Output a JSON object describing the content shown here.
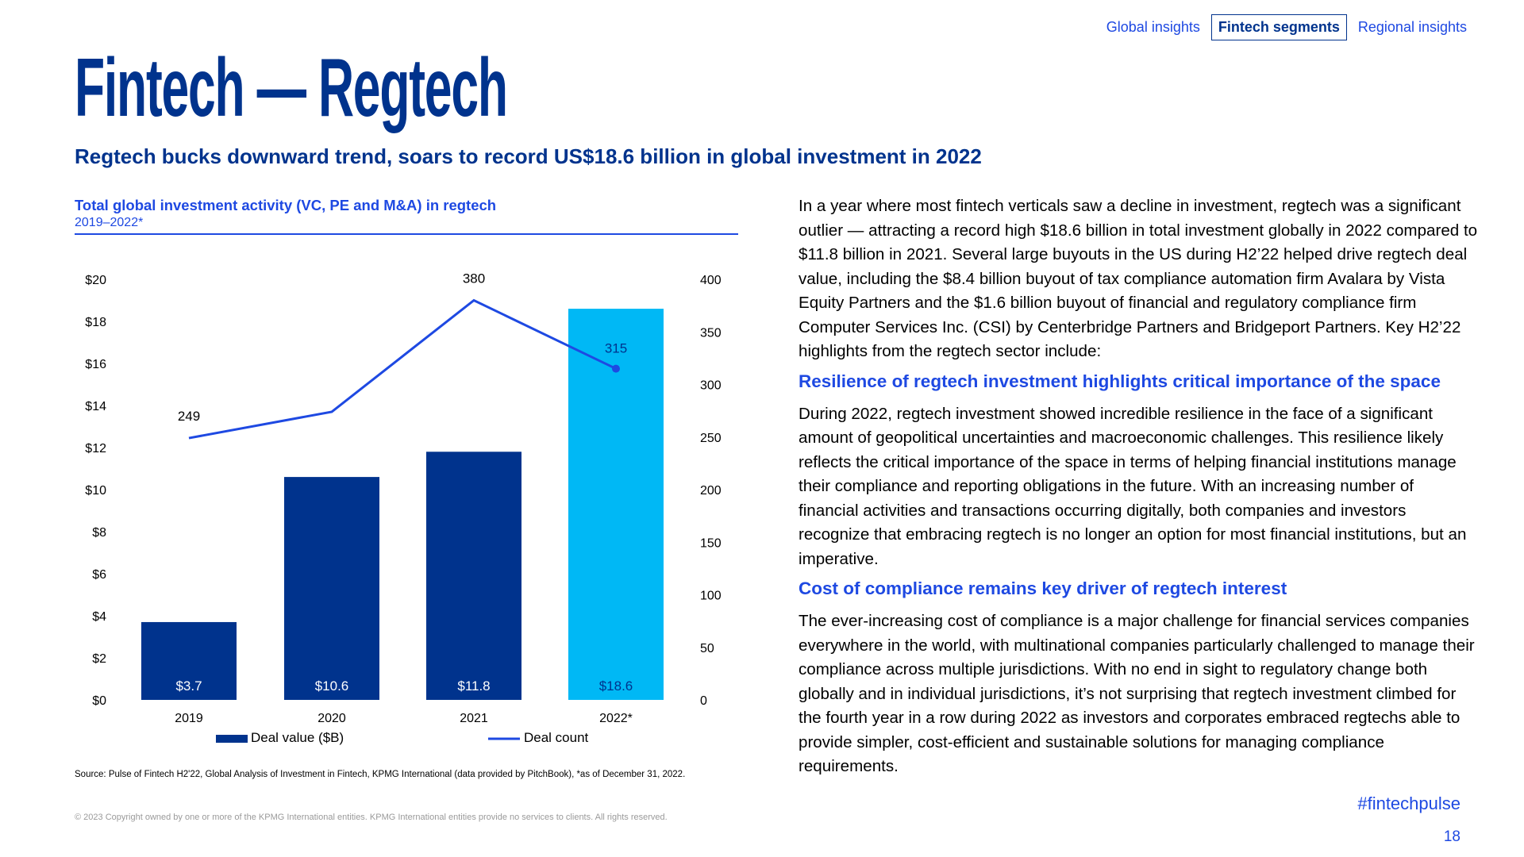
{
  "nav": {
    "tabs": [
      {
        "label": "Global insights"
      },
      {
        "label": "Fintech segments"
      },
      {
        "label": "Regional insights"
      }
    ],
    "active_tab": "Fintech segments"
  },
  "page": {
    "title": "Fintech — Regtech",
    "subtitle": "Regtech bucks downward trend, soars to record US$18.6 billion in global investment in 2022",
    "hashtag": "#fintechpulse",
    "page_number": "18",
    "source": "Source: Pulse of Fintech H2'22, Global Analysis of Investment in Fintech, KPMG International (data provided by PitchBook), *as of December 31, 2022.",
    "copyright": "© 2023 Copyright owned by one or more of the KPMG International entities. KPMG International entities provide no services to clients. All rights reserved."
  },
  "colors": {
    "kpmg_blue": "#00338D",
    "cobalt": "#1E49E2",
    "light_blue": "#00B8F5",
    "bar_dark": "#00338D",
    "bar_highlight": "#00B8F5",
    "line": "#1E49E2"
  },
  "chart_data": {
    "type": "bar",
    "title": "Total global investment activity (VC, PE and M&A) in regtech",
    "subtitle": "2019–2022*",
    "categories": [
      "2019",
      "2020",
      "2021",
      "2022*"
    ],
    "series": [
      {
        "name": "Deal value ($B)",
        "type": "bar",
        "axis": "left",
        "values": [
          3.7,
          10.6,
          11.8,
          18.6
        ],
        "labels": [
          "$3.7",
          "$10.6",
          "$11.8",
          "$18.6"
        ]
      },
      {
        "name": "Deal count",
        "type": "line",
        "axis": "right",
        "values": [
          249,
          274,
          380,
          315
        ],
        "labels": [
          "249",
          "",
          "380",
          "315"
        ]
      }
    ],
    "y_left": {
      "min": 0,
      "max": 20,
      "step": 2,
      "ticks": [
        "$0",
        "$2",
        "$4",
        "$6",
        "$8",
        "$10",
        "$12",
        "$14",
        "$16",
        "$18",
        "$20"
      ]
    },
    "y_right": {
      "min": 0,
      "max": 400,
      "step": 50,
      "ticks": [
        "0",
        "50",
        "100",
        "150",
        "200",
        "250",
        "300",
        "350",
        "400"
      ]
    },
    "legend": [
      "Deal value ($B)",
      "Deal count"
    ],
    "grid": false
  },
  "body": {
    "intro": "In a year where most fintech verticals saw a decline in investment, regtech was a significant outlier — attracting a record high $18.6 billion in total investment globally in 2022 compared to $11.8 billion in 2021. Several large buyouts in the US during H2’22 helped drive regtech deal value, including the $8.4 billion buyout of tax compliance automation firm Avalara by Vista Equity Partners and the $1.6 billion buyout of financial and regulatory compliance firm Computer Services Inc. (CSI) by Centerbridge Partners and Bridgeport Partners. Key H2’22 highlights from the regtech sector include:",
    "section1_heading": "Resilience of regtech investment highlights critical importance of the space",
    "section1_text": "During 2022, regtech investment showed incredible resilience in the face of a significant amount of geopolitical uncertainties and macroeconomic challenges. This resilience likely reflects the critical importance of the space in terms of helping financial institutions manage their compliance and reporting obligations in the future. With an increasing number of financial activities and transactions occurring digitally, both companies and investors recognize that embracing regtech is no longer an option for most financial institutions, but an imperative.",
    "section2_heading": "Cost of compliance remains key driver of regtech interest",
    "section2_text": "The ever-increasing cost of compliance is a major challenge for financial services companies everywhere in the world, with multinational companies particularly challenged to manage their compliance across multiple jurisdictions. With no end in sight to regulatory change both globally and in individual jurisdictions, it’s not surprising that regtech investment climbed for the fourth year in a row during 2022 as investors and corporates embraced regtechs able to provide simpler, cost-efficient and sustainable solutions for managing compliance requirements."
  }
}
